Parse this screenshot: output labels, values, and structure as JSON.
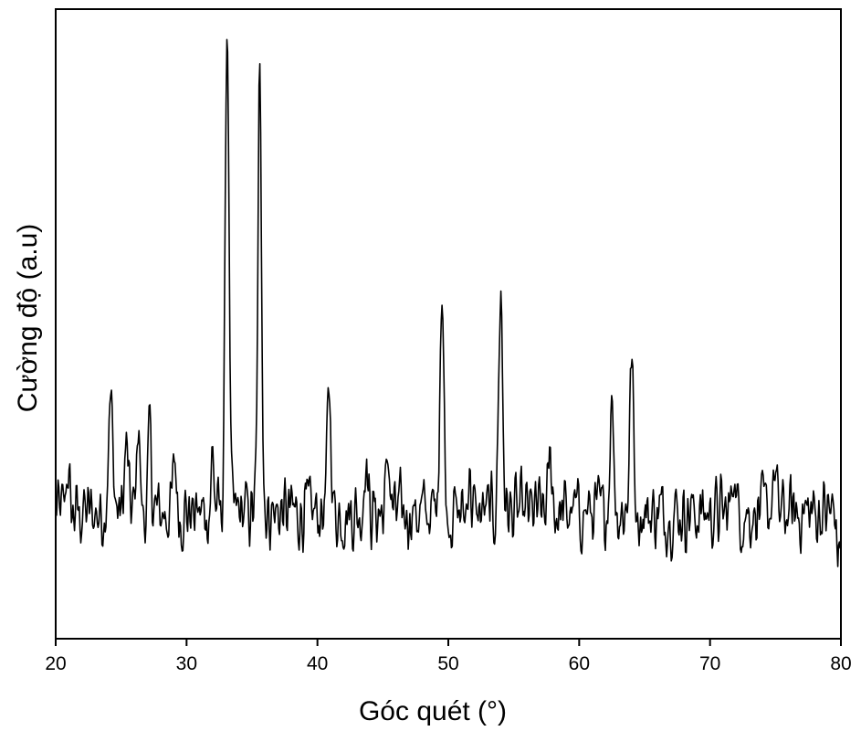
{
  "chart_data": {
    "type": "line",
    "title": "",
    "xlabel": "Góc quét (°)",
    "ylabel": "Cường độ (a.u)",
    "xlim": [
      20,
      80
    ],
    "ylim": [
      0,
      100
    ],
    "xticks": [
      "20",
      "30",
      "40",
      "50",
      "60",
      "70",
      "80"
    ],
    "yticks_shown": false,
    "grid": false,
    "legend": "none",
    "line_color": "#000000",
    "baseline": 20,
    "noise_amplitude": 5,
    "peaks": [
      {
        "x": 20.9,
        "height": 7,
        "width": 0.12
      },
      {
        "x": 24.2,
        "height": 17,
        "width": 0.18
      },
      {
        "x": 25.4,
        "height": 10,
        "width": 0.15
      },
      {
        "x": 26.3,
        "height": 15,
        "width": 0.12
      },
      {
        "x": 27.2,
        "height": 13,
        "width": 0.12
      },
      {
        "x": 29.1,
        "height": 9,
        "width": 0.12
      },
      {
        "x": 32.0,
        "height": 10,
        "width": 0.1
      },
      {
        "x": 33.1,
        "height": 79,
        "width": 0.14
      },
      {
        "x": 35.6,
        "height": 69,
        "width": 0.14
      },
      {
        "x": 40.9,
        "height": 20,
        "width": 0.14
      },
      {
        "x": 43.7,
        "height": 10,
        "width": 0.12
      },
      {
        "x": 45.4,
        "height": 10,
        "width": 0.12
      },
      {
        "x": 49.5,
        "height": 36,
        "width": 0.15
      },
      {
        "x": 51.6,
        "height": 8,
        "width": 0.1
      },
      {
        "x": 54.0,
        "height": 35,
        "width": 0.15
      },
      {
        "x": 57.8,
        "height": 9,
        "width": 0.14
      },
      {
        "x": 62.5,
        "height": 18,
        "width": 0.15
      },
      {
        "x": 64.0,
        "height": 24,
        "width": 0.15
      },
      {
        "x": 71.8,
        "height": 8,
        "width": 0.12
      },
      {
        "x": 74.9,
        "height": 6,
        "width": 0.15
      },
      {
        "x": 79.8,
        "height": -8,
        "width": 0.1
      }
    ]
  }
}
